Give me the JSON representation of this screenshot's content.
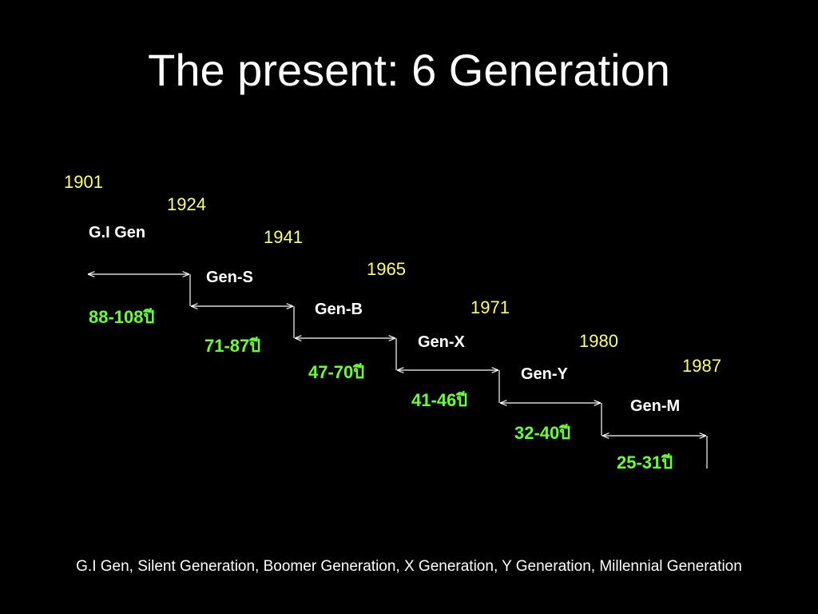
{
  "slide": {
    "title": "The present: 6 Generation",
    "footer": "G.I Gen, Silent Generation, Boomer Generation, X Generation, Y Generation, Millennial Generation"
  },
  "timeline": {
    "years": [
      "1901",
      "1924",
      "1941",
      "1965",
      "1971",
      "1980",
      "1987"
    ],
    "generations": [
      {
        "name": "G.I Gen",
        "age": "88-108ปี"
      },
      {
        "name": "Gen-S",
        "age": "71-87ปี"
      },
      {
        "name": "Gen-B",
        "age": "47-70ปี"
      },
      {
        "name": "Gen-X",
        "age": "41-46ปี"
      },
      {
        "name": "Gen-Y",
        "age": "32-40ปี"
      },
      {
        "name": "Gen-M",
        "age": "25-31ปี"
      }
    ]
  },
  "colors": {
    "background": "#000000",
    "year": "#ffff66",
    "age": "#66ff33",
    "text": "#ffffff"
  }
}
